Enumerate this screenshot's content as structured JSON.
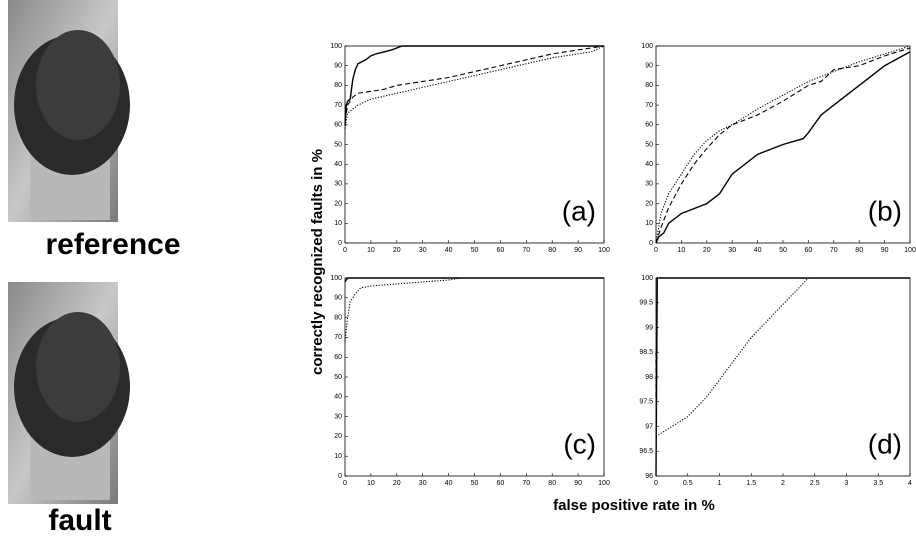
{
  "images": [
    {
      "label": "reference"
    },
    {
      "label": "fault"
    }
  ],
  "figure": {
    "ylabel": "correctly recognized faults in %",
    "xlabel": "false positive rate in %"
  },
  "chart_data": [
    {
      "type": "line",
      "annotation": "(a)",
      "xlim": [
        0,
        100
      ],
      "ylim": [
        0,
        100
      ],
      "xticks": [
        0,
        10,
        20,
        30,
        40,
        50,
        60,
        70,
        80,
        90,
        100
      ],
      "yticks": [
        0,
        10,
        20,
        30,
        40,
        50,
        60,
        70,
        80,
        90,
        100
      ],
      "series": [
        {
          "dash": "solid",
          "color": "#000000",
          "x": [
            0,
            0.5,
            1,
            2,
            3,
            4,
            5,
            8,
            10,
            12,
            15,
            18,
            20,
            22,
            100
          ],
          "values": [
            60,
            70,
            72,
            73,
            83,
            88,
            91,
            93,
            95,
            96,
            97,
            98,
            99,
            100,
            100
          ]
        },
        {
          "dash": "dashed",
          "color": "#000000",
          "x": [
            0,
            1,
            3,
            5,
            10,
            15,
            20,
            30,
            40,
            50,
            60,
            70,
            80,
            90,
            100
          ],
          "values": [
            62,
            70,
            74,
            76,
            77,
            78,
            80,
            82,
            84,
            87,
            90,
            93,
            96,
            98,
            100
          ]
        },
        {
          "dash": "dotted",
          "color": "#000000",
          "x": [
            0,
            1,
            3,
            5,
            10,
            20,
            30,
            40,
            50,
            60,
            70,
            80,
            90,
            95,
            100
          ],
          "values": [
            58,
            66,
            68,
            70,
            73,
            76,
            79,
            82,
            85,
            88,
            91,
            94,
            96,
            97,
            100
          ]
        }
      ]
    },
    {
      "type": "line",
      "annotation": "(b)",
      "xlim": [
        0,
        100
      ],
      "ylim": [
        0,
        100
      ],
      "xticks": [
        0,
        10,
        20,
        30,
        40,
        50,
        60,
        70,
        80,
        90,
        100
      ],
      "yticks": [
        0,
        10,
        20,
        30,
        40,
        50,
        60,
        70,
        80,
        90,
        100
      ],
      "series": [
        {
          "dash": "solid",
          "color": "#000000",
          "x": [
            0,
            1,
            3,
            5,
            10,
            20,
            25,
            30,
            40,
            50,
            58,
            60,
            65,
            70,
            80,
            90,
            100
          ],
          "values": [
            0,
            3,
            5,
            10,
            15,
            20,
            25,
            35,
            45,
            50,
            53,
            56,
            65,
            70,
            80,
            90,
            97
          ]
        },
        {
          "dash": "dashed",
          "color": "#000000",
          "x": [
            0,
            2,
            5,
            10,
            15,
            20,
            25,
            30,
            40,
            50,
            60,
            65,
            70,
            80,
            90,
            100
          ],
          "values": [
            0,
            8,
            18,
            30,
            40,
            48,
            55,
            60,
            65,
            72,
            80,
            82,
            88,
            90,
            95,
            99
          ]
        },
        {
          "dash": "dotted",
          "color": "#000000",
          "x": [
            0,
            2,
            5,
            10,
            15,
            20,
            25,
            30,
            40,
            50,
            60,
            70,
            80,
            90,
            100
          ],
          "values": [
            0,
            15,
            25,
            35,
            45,
            52,
            57,
            60,
            68,
            75,
            82,
            87,
            92,
            96,
            100
          ]
        }
      ]
    },
    {
      "type": "line",
      "annotation": "(c)",
      "xlim": [
        0,
        100
      ],
      "ylim": [
        0,
        100
      ],
      "xticks": [
        0,
        10,
        20,
        30,
        40,
        50,
        60,
        70,
        80,
        90,
        100
      ],
      "yticks": [
        0,
        10,
        20,
        30,
        40,
        50,
        60,
        70,
        80,
        90,
        100
      ],
      "series": [
        {
          "dash": "solid",
          "color": "#000000",
          "x": [
            0,
            1,
            100
          ],
          "values": [
            98,
            100,
            100
          ]
        },
        {
          "dash": "dotted",
          "color": "#000000",
          "x": [
            0,
            1,
            2,
            4,
            6,
            10,
            20,
            30,
            40,
            45,
            100
          ],
          "values": [
            68,
            80,
            88,
            92,
            95,
            96,
            97,
            98,
            99,
            100,
            100
          ]
        }
      ]
    },
    {
      "type": "line",
      "annotation": "(d)",
      "xlim": [
        0,
        4
      ],
      "ylim": [
        96,
        100
      ],
      "xticks": [
        0,
        0.5,
        1,
        1.5,
        2,
        2.5,
        3,
        3.5,
        4
      ],
      "yticks": [
        96,
        96.5,
        97,
        97.5,
        98,
        98.5,
        99,
        99.5,
        100
      ],
      "series": [
        {
          "dash": "solid",
          "color": "#000000",
          "x": [
            0,
            0.02,
            4
          ],
          "values": [
            96,
            100,
            100
          ]
        },
        {
          "dash": "dashed",
          "color": "#000000",
          "x": [
            0,
            0
          ],
          "values": [
            97.6,
            98.5
          ]
        },
        {
          "dash": "dotted",
          "color": "#000000",
          "x": [
            0,
            0.5,
            0.8,
            1.5,
            2.4
          ],
          "values": [
            96.8,
            97.2,
            97.6,
            98.8,
            100
          ]
        }
      ]
    }
  ]
}
